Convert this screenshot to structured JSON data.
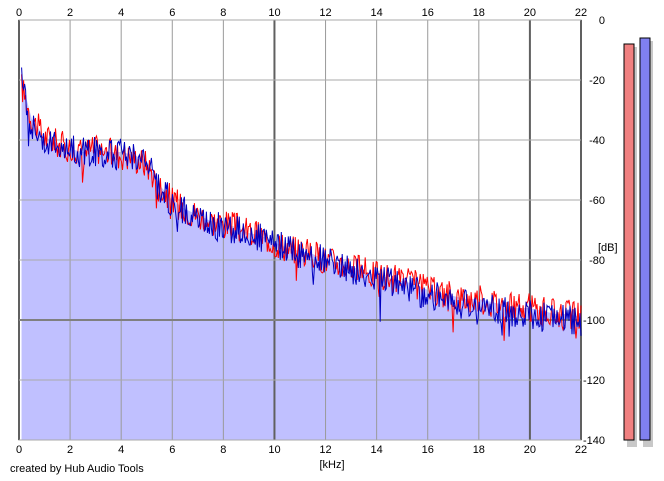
{
  "credit": "created by Hub Audio Tools",
  "chart_data": {
    "type": "area",
    "xlabel": "[kHz]",
    "ylabel": "[dB]",
    "xlim": [
      0,
      22
    ],
    "ylim": [
      -140,
      0
    ],
    "x_ticks": [
      0,
      2,
      4,
      6,
      8,
      10,
      12,
      14,
      16,
      18,
      20,
      22
    ],
    "y_ticks": [
      0,
      -20,
      -40,
      -60,
      -80,
      -100,
      -120,
      -140
    ],
    "x_tick_labels": [
      "0",
      "2",
      "4",
      "6",
      "8",
      "10",
      "12",
      "14",
      "16",
      "18",
      "20",
      "22"
    ],
    "y_tick_labels": [
      "0",
      "-20",
      "-40",
      "-60",
      "-80",
      "-100",
      "-120",
      "-140"
    ],
    "grid": true,
    "fill_color": "#c0c0ff",
    "series": [
      {
        "color": "#ff0000",
        "x": [
          0.1,
          0.5,
          1,
          1.5,
          2,
          2.5,
          3,
          3.5,
          4,
          4.5,
          5,
          5.5,
          6,
          6.5,
          7,
          7.5,
          8,
          8.5,
          9,
          9.5,
          10,
          10.5,
          11,
          11.5,
          12,
          12.5,
          13,
          13.5,
          14,
          14.5,
          15,
          15.5,
          16,
          16.5,
          17,
          17.5,
          18,
          18.5,
          19,
          19.5,
          20,
          20.5,
          21,
          21.5,
          22
        ],
        "values": [
          -22,
          -33,
          -39,
          -41,
          -43,
          -44,
          -43,
          -44,
          -45,
          -46,
          -48,
          -55,
          -60,
          -63,
          -65,
          -67,
          -68,
          -69,
          -71,
          -72,
          -74,
          -76,
          -77,
          -78,
          -80,
          -81,
          -82,
          -84,
          -85,
          -86,
          -87,
          -88,
          -90,
          -91,
          -92,
          -93,
          -93,
          -94,
          -95,
          -96,
          -96,
          -97,
          -98,
          -98,
          -99
        ]
      },
      {
        "color": "#0000c0",
        "x": [
          0.1,
          0.5,
          1,
          1.5,
          2,
          2.5,
          3,
          3.5,
          4,
          4.5,
          5,
          5.5,
          6,
          6.5,
          7,
          7.5,
          8,
          8.5,
          9,
          9.5,
          10,
          10.5,
          11,
          11.5,
          12,
          12.5,
          13,
          13.5,
          14,
          14.5,
          15,
          15.5,
          16,
          16.5,
          17,
          17.5,
          18,
          18.5,
          19,
          19.5,
          20,
          20.5,
          21,
          21.5,
          22
        ],
        "values": [
          -20,
          -35,
          -40,
          -42,
          -43,
          -44,
          -44,
          -45,
          -44,
          -45,
          -47,
          -56,
          -61,
          -64,
          -66,
          -68,
          -69,
          -70,
          -71,
          -73,
          -75,
          -76,
          -78,
          -79,
          -80,
          -82,
          -83,
          -85,
          -86,
          -87,
          -88,
          -90,
          -92,
          -92,
          -94,
          -95,
          -95,
          -96,
          -97,
          -98,
          -98,
          -99,
          -99,
          -100,
          -101
        ]
      }
    ],
    "level_meters": [
      {
        "color": "#f08080",
        "top_db": -8
      },
      {
        "color": "#8080f0",
        "top_db": -6
      }
    ]
  }
}
